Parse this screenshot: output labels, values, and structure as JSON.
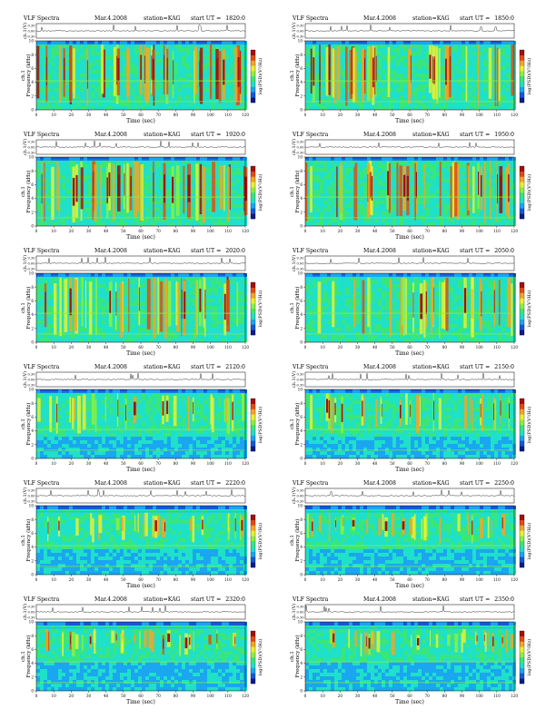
{
  "header": {
    "title": "VLF Spectra",
    "date": "Mar.4.2008",
    "station": "station=KAG",
    "start_label": "start UT ="
  },
  "common": {
    "wave_ylabel": "ch.1(V)",
    "wave_ticks": [
      "0.30",
      "0.00",
      "-0.30"
    ],
    "freq_ylabel": "ch.1\nFrequency (kHz)",
    "freq_ticks": [
      "0",
      "2",
      "4",
      "6",
      "8",
      "10"
    ],
    "colorbar_label": "log(PSD)(V²/Hz)",
    "xlabel": "Time (sec)",
    "x_ticks": [
      "0",
      "10",
      "20",
      "30",
      "40",
      "50",
      "60",
      "70",
      "80",
      "90",
      "100",
      "110",
      "120"
    ]
  },
  "chart_data": [
    {
      "type": "heatmap",
      "start_ut": "1820:0",
      "xlim": [
        0,
        120
      ],
      "ylim": [
        0,
        10
      ],
      "band_khz": [
        0.5,
        9.5
      ],
      "intensity": 0.82
    },
    {
      "type": "heatmap",
      "start_ut": "1850:0",
      "xlim": [
        0,
        120
      ],
      "ylim": [
        0,
        10
      ],
      "band_khz": [
        0.5,
        9.5
      ],
      "intensity": 0.85
    },
    {
      "type": "heatmap",
      "start_ut": "1920:0",
      "xlim": [
        0,
        120
      ],
      "ylim": [
        0,
        10
      ],
      "band_khz": [
        0.5,
        9.5
      ],
      "intensity": 0.78
    },
    {
      "type": "heatmap",
      "start_ut": "1950:0",
      "xlim": [
        0,
        120
      ],
      "ylim": [
        0,
        10
      ],
      "band_khz": [
        0.5,
        9.5
      ],
      "intensity": 0.74
    },
    {
      "type": "heatmap",
      "start_ut": "2020:0",
      "xlim": [
        0,
        120
      ],
      "ylim": [
        0,
        10
      ],
      "band_khz": [
        0.5,
        9.5
      ],
      "intensity": 0.72
    },
    {
      "type": "heatmap",
      "start_ut": "2050:0",
      "xlim": [
        0,
        120
      ],
      "ylim": [
        0,
        10
      ],
      "band_khz": [
        0.5,
        9.5
      ],
      "intensity": 0.55
    },
    {
      "type": "heatmap",
      "start_ut": "2120:0",
      "xlim": [
        0,
        120
      ],
      "ylim": [
        0,
        10
      ],
      "band_khz": [
        3.5,
        9.5
      ],
      "intensity": 0.45
    },
    {
      "type": "heatmap",
      "start_ut": "2150:0",
      "xlim": [
        0,
        120
      ],
      "ylim": [
        0,
        10
      ],
      "band_khz": [
        3.5,
        9.5
      ],
      "intensity": 0.45
    },
    {
      "type": "heatmap",
      "start_ut": "2220:0",
      "xlim": [
        0,
        120
      ],
      "ylim": [
        0,
        10
      ],
      "band_khz": [
        4.5,
        9.0
      ],
      "intensity": 0.5
    },
    {
      "type": "heatmap",
      "start_ut": "2250:0",
      "xlim": [
        0,
        120
      ],
      "ylim": [
        0,
        10
      ],
      "band_khz": [
        4.5,
        9.0
      ],
      "intensity": 0.5
    },
    {
      "type": "heatmap",
      "start_ut": "2320:0",
      "xlim": [
        0,
        120
      ],
      "ylim": [
        0,
        10
      ],
      "band_khz": [
        5.0,
        9.0
      ],
      "intensity": 0.55
    },
    {
      "type": "heatmap",
      "start_ut": "2350:0",
      "xlim": [
        0,
        120
      ],
      "ylim": [
        0,
        10
      ],
      "band_khz": [
        5.0,
        9.0
      ],
      "intensity": 0.52
    }
  ]
}
